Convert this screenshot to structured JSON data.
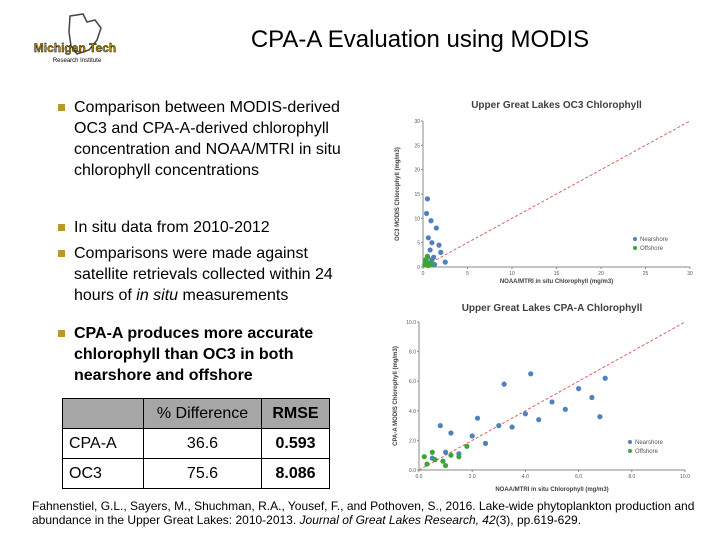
{
  "logo": {
    "name": "Michigan Tech",
    "subtitle": "Research Institute"
  },
  "title": "CPA-A Evaluation using MODIS",
  "bullets": [
    {
      "runs": [
        {
          "text": "Comparison between MODIS-derived OC3 and CPA-A-derived chlorophyll concentration and NOAA/MTRI in situ chlorophyll concentrations"
        }
      ]
    },
    {
      "runs": [
        {
          "text": "In situ data from 2010-2012"
        }
      ]
    },
    {
      "runs": [
        {
          "text": "Comparisons were made against satellite retrievals collected within 24 hours of "
        },
        {
          "text": "in situ",
          "italic": true
        },
        {
          "text": " measurements"
        }
      ]
    },
    {
      "runs": [
        {
          "text": "CPA-A produces more accurate chlorophyll than OC3 in both nearshore and offshore"
        }
      ],
      "bold": true
    }
  ],
  "table": {
    "header": [
      "% Difference",
      "RMSE"
    ],
    "rows": [
      [
        "CPA-A",
        "36.6",
        "0.593"
      ],
      [
        "OC3",
        "75.6",
        "8.086"
      ]
    ]
  },
  "citation": [
    {
      "text": "Fahnenstiel, G.L., Sayers, M., Shuchman, R.A., Yousef, F., and Pothoven, S., 2016.  Lake-wide phytoplankton production and abundance in the Upper Great Lakes: 2010-2013. "
    },
    {
      "text": "Journal of Great Lakes Research, 42",
      "italic": true
    },
    {
      "text": "(3), pp.619-629."
    }
  ],
  "chart_data": [
    {
      "type": "scatter",
      "title": "Upper Great Lakes OC3 Chlorophyll",
      "xlabel": "NOAA/MTRI in situ Chlorophyll (mg/m3)",
      "ylabel": "OC3 MODIS Chlorophyll (mg/m3)",
      "xlim": [
        0,
        30
      ],
      "ylim": [
        0,
        30
      ],
      "xticks": [
        0,
        5,
        10,
        15,
        20,
        25,
        30
      ],
      "yticks": [
        0,
        5,
        10,
        15,
        20,
        25,
        30
      ],
      "series": [
        {
          "name": "Nearshore",
          "color": "#4f81bd",
          "x": [
            0.3,
            0.5,
            0.8,
            1,
            1.2,
            1.5,
            0.6,
            0.4,
            2,
            1,
            0.7,
            1.8,
            2.5,
            0.9,
            1.3,
            0.5
          ],
          "values": [
            1,
            2,
            3.5,
            5,
            2,
            8,
            6,
            11,
            3,
            1.5,
            0.8,
            4.5,
            1,
            9.5,
            0.5,
            14
          ]
        },
        {
          "name": "Offshore",
          "color": "#3aa63a",
          "x": [
            0.2,
            0.4,
            0.6,
            0.3,
            0.8,
            0.5,
            1
          ],
          "values": [
            0.5,
            1,
            0.3,
            1.5,
            0.8,
            2.2,
            0.6
          ]
        }
      ]
    },
    {
      "type": "scatter",
      "title": "Upper Great Lakes CPA-A Chlorophyll",
      "xlabel": "NOAA/MTRI in situ Chlorophyll (mg/m3)",
      "ylabel": "CPA-A MODIS Chlorophyll (mg/m3)",
      "xlim": [
        0,
        10
      ],
      "ylim": [
        0,
        10
      ],
      "xticks": [
        {
          "value": 0,
          "label": "0.0"
        },
        {
          "value": 2,
          "label": "2.0"
        },
        {
          "value": 4,
          "label": "4.0"
        },
        {
          "value": 6,
          "label": "6.0"
        },
        {
          "value": 8,
          "label": "8.0"
        },
        {
          "value": 10,
          "label": "10.0"
        }
      ],
      "yticks": [
        {
          "value": 0,
          "label": "0.0"
        },
        {
          "value": 2,
          "label": "2.0"
        },
        {
          "value": 4,
          "label": "4.0"
        },
        {
          "value": 6,
          "label": "6.0"
        },
        {
          "value": 8,
          "label": "8.0"
        },
        {
          "value": 10,
          "label": "10.0"
        }
      ],
      "series": [
        {
          "name": "Nearshore",
          "color": "#4f81bd",
          "x": [
            0.5,
            1,
            1.5,
            2,
            2.5,
            3,
            3.5,
            4,
            4.5,
            5,
            5.5,
            6,
            6.5,
            7,
            1.2,
            2.2,
            3.2,
            4.2,
            0.8,
            6.8
          ],
          "values": [
            0.8,
            1.2,
            1.1,
            2.3,
            1.8,
            3,
            2.9,
            3.8,
            3.4,
            4.6,
            4.1,
            5.5,
            4.9,
            6.2,
            2.5,
            3.5,
            5.8,
            6.5,
            3,
            3.6
          ]
        },
        {
          "name": "Offshore",
          "color": "#3aa63a",
          "x": [
            0.3,
            0.6,
            0.9,
            1.2,
            0.5,
            1.5,
            1.8,
            0.2,
            1
          ],
          "values": [
            0.4,
            0.7,
            0.6,
            1,
            1.2,
            0.9,
            1.6,
            0.9,
            0.3
          ]
        }
      ]
    }
  ]
}
